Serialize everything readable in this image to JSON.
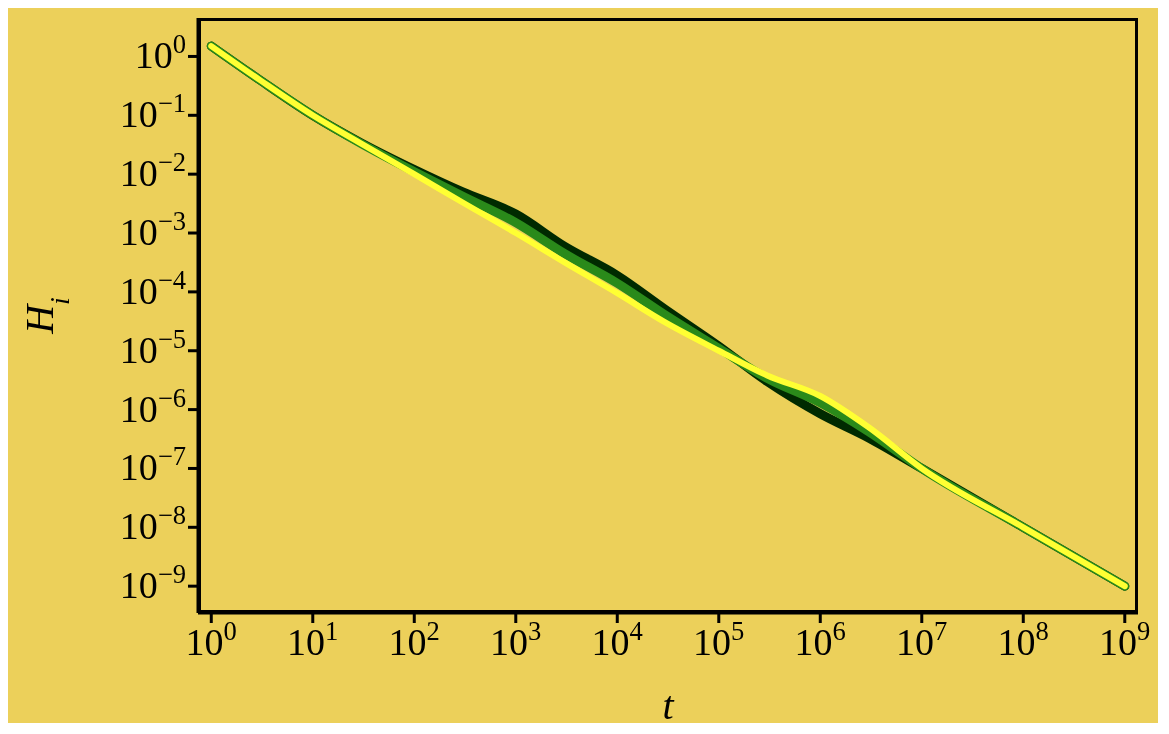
{
  "chart_data": {
    "type": "line",
    "xlabel": "t",
    "ylabel": "H$_{i}$",
    "log": "xy",
    "legend": false,
    "grid": false,
    "marker": "none",
    "line_style": "solid",
    "x": [
      1,
      3,
      10,
      30,
      100,
      300,
      1000,
      3000,
      10000,
      30000,
      100000,
      300000,
      1000000,
      3000000,
      10000000,
      100000000,
      1000000000
    ],
    "xlim": [
      0.74,
      1350000000
    ],
    "ylim": [
      3.5e-10,
      4.5
    ],
    "xticks": [
      {
        "value": 1,
        "label": "10$^{0}$"
      },
      {
        "value": 10,
        "label": "10$^{1}$"
      },
      {
        "value": 100,
        "label": "10$^{2}$"
      },
      {
        "value": 1000,
        "label": "10$^{3}$"
      },
      {
        "value": 10000,
        "label": "10$^{4}$"
      },
      {
        "value": 100000,
        "label": "10$^{5}$"
      },
      {
        "value": 1000000,
        "label": "10$^{6}$"
      },
      {
        "value": 10000000,
        "label": "10$^{7}$"
      },
      {
        "value": 100000000,
        "label": "10$^{8}$"
      },
      {
        "value": 1000000000,
        "label": "10$^{9}$"
      }
    ],
    "yticks": [
      {
        "value": 1,
        "label": "10$^{0}$"
      },
      {
        "value": 0.1,
        "label": "10$^{−1}$"
      },
      {
        "value": 0.01,
        "label": "10$^{−2}$"
      },
      {
        "value": 0.001,
        "label": "10$^{−3}$"
      },
      {
        "value": 0.0001,
        "label": "10$^{−4}$"
      },
      {
        "value": 1e-05,
        "label": "10$^{−5}$"
      },
      {
        "value": 1e-06,
        "label": "10$^{−6}$"
      },
      {
        "value": 1e-07,
        "label": "10$^{−7}$"
      },
      {
        "value": 1e-08,
        "label": "10$^{−8}$"
      },
      {
        "value": 1e-09,
        "label": "10$^{−9}$"
      }
    ],
    "series": [
      {
        "color": "#002a00",
        "values": [
          1.5,
          0.4,
          0.1,
          0.034,
          0.012,
          0.005,
          0.0021,
          0.0006,
          0.00019,
          5e-05,
          1.2e-05,
          3e-06,
          8.5e-07,
          3.3e-07,
          1e-07,
          1e-08,
          1e-09
        ]
      },
      {
        "color": "#2a8a1a",
        "values": [
          1.5,
          0.4,
          0.1,
          0.033,
          0.011,
          0.0042,
          0.0015,
          0.00045,
          0.00014,
          4e-05,
          1.1e-05,
          3.4e-06,
          1.3e-06,
          4.2e-07,
          1e-07,
          1e-08,
          1e-09
        ]
      },
      {
        "color": "#ffff33",
        "values": [
          1.5,
          0.4,
          0.1,
          0.033,
          0.01,
          0.0033,
          0.001,
          0.00032,
          9.5e-05,
          3e-05,
          1e-05,
          3.8e-06,
          1.7e-06,
          5e-07,
          1e-07,
          1e-08,
          1e-09
        ]
      }
    ]
  }
}
